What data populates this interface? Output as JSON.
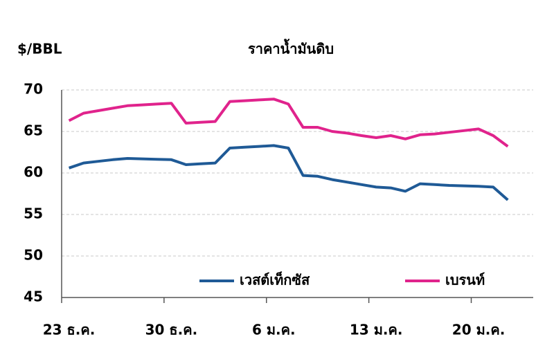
{
  "chart_data": {
    "type": "line",
    "title": "ราคาน้ำมันดิบ",
    "y_label": "$/BBL",
    "categories": [
      "23 ธ.ค.",
      null,
      null,
      null,
      null,
      null,
      null,
      "30 ธ.ค.",
      null,
      null,
      null,
      null,
      null,
      null,
      "6 ม.ค.",
      null,
      null,
      null,
      null,
      null,
      null,
      "13 ม.ค.",
      null,
      null,
      null,
      null,
      null,
      null,
      "20 ม.ค.",
      null,
      null,
      null
    ],
    "series": [
      {
        "name": "เวสต์เท็กซัส",
        "color": "#1f5a96",
        "values": [
          60.6,
          61.2,
          61.4,
          61.6,
          61.75,
          61.7,
          61.65,
          61.6,
          61.0,
          61.1,
          61.2,
          63.0,
          63.1,
          63.2,
          63.3,
          63.0,
          59.7,
          59.6,
          59.2,
          58.9,
          58.6,
          58.3,
          58.2,
          57.8,
          58.7,
          58.6,
          58.5,
          58.45,
          58.4,
          58.3,
          56.75,
          null
        ]
      },
      {
        "name": "เบรนท์",
        "color": "#e0238c",
        "values": [
          66.3,
          67.2,
          67.5,
          67.8,
          68.1,
          68.2,
          68.3,
          68.4,
          66.0,
          66.1,
          66.2,
          68.6,
          68.7,
          68.8,
          68.9,
          68.3,
          65.5,
          65.5,
          65.0,
          64.8,
          64.5,
          64.25,
          64.5,
          64.1,
          64.6,
          64.7,
          64.9,
          65.1,
          65.3,
          64.5,
          63.2,
          null
        ]
      }
    ],
    "ylim": [
      45,
      70
    ],
    "yticks": [
      45,
      50,
      55,
      60,
      65,
      70
    ],
    "grid": true
  }
}
